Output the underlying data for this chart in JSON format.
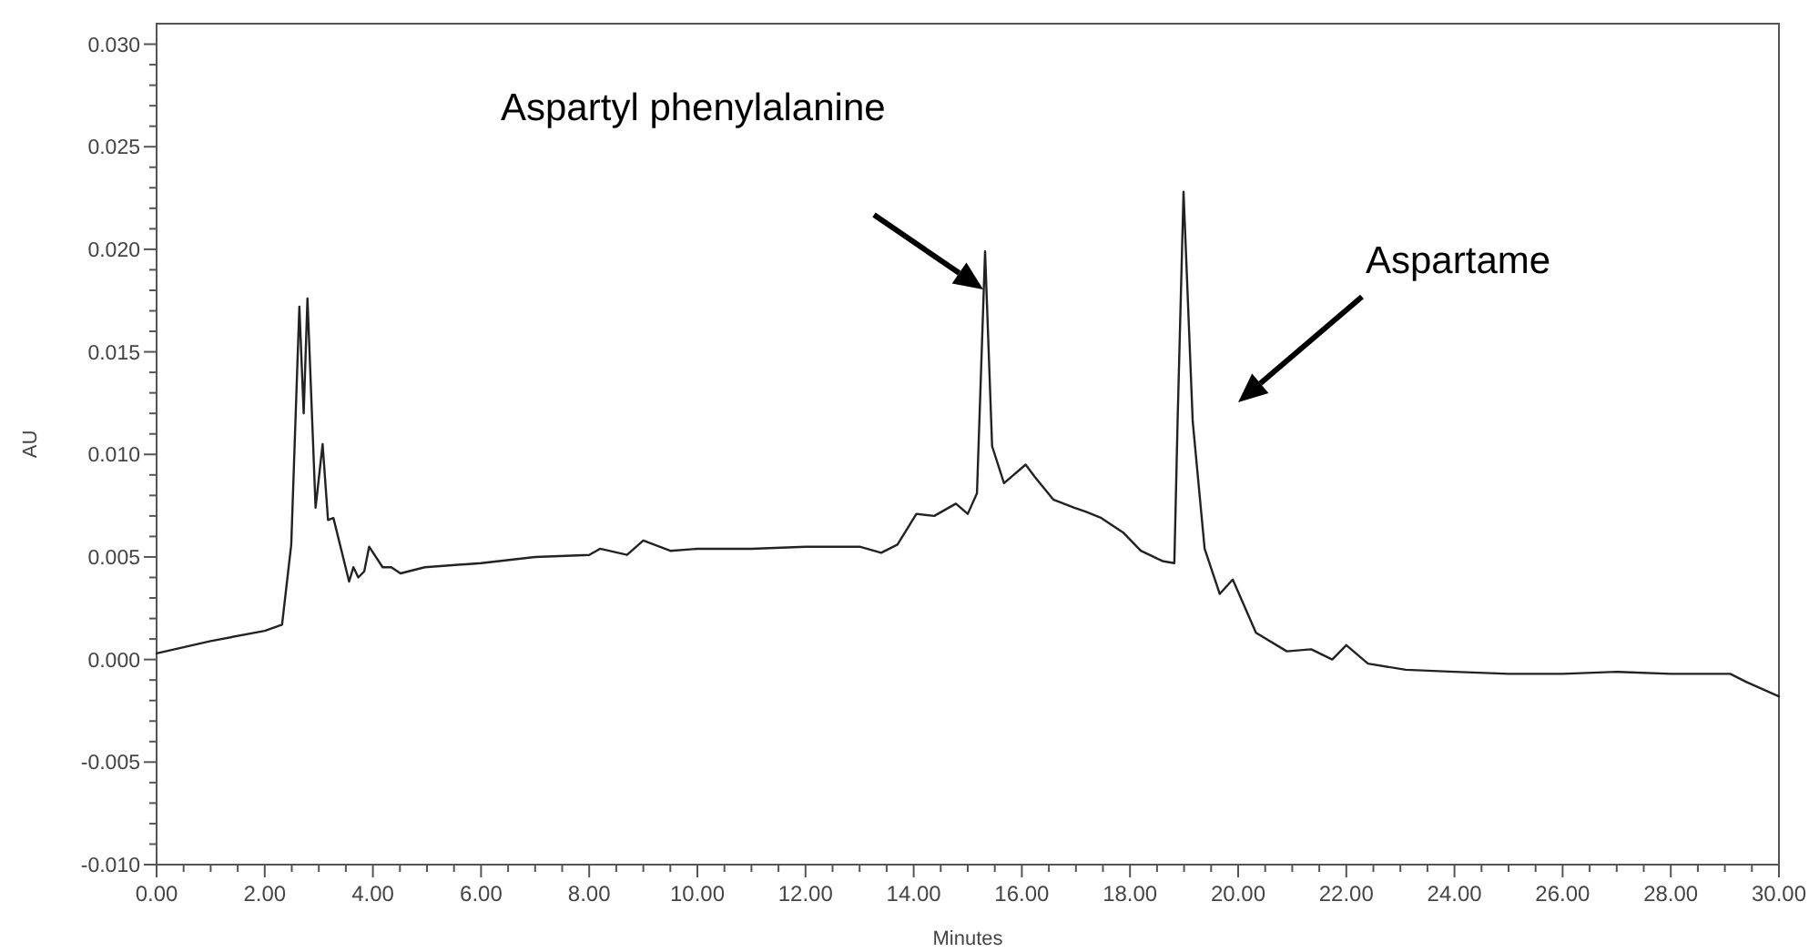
{
  "chart_data": {
    "type": "line",
    "xlabel": "Minutes",
    "ylabel": "AU",
    "grid": false,
    "marker": "none",
    "line_style": "solid",
    "xlim": [
      0,
      30
    ],
    "ylim": [
      -0.01,
      0.031
    ],
    "xticks": [
      {
        "value": 0,
        "label": "0.00"
      },
      {
        "value": 0.5,
        "label": null
      },
      {
        "value": 1,
        "label": null
      },
      {
        "value": 1.5,
        "label": null
      },
      {
        "value": 2,
        "label": "2.00"
      },
      {
        "value": 2.5,
        "label": null
      },
      {
        "value": 3,
        "label": null
      },
      {
        "value": 3.5,
        "label": null
      },
      {
        "value": 4,
        "label": "4.00"
      },
      {
        "value": 4.5,
        "label": null
      },
      {
        "value": 5,
        "label": null
      },
      {
        "value": 5.5,
        "label": null
      },
      {
        "value": 6,
        "label": "6.00"
      },
      {
        "value": 6.5,
        "label": null
      },
      {
        "value": 7,
        "label": null
      },
      {
        "value": 7.5,
        "label": null
      },
      {
        "value": 8,
        "label": "8.00"
      },
      {
        "value": 8.5,
        "label": null
      },
      {
        "value": 9,
        "label": null
      },
      {
        "value": 9.5,
        "label": null
      },
      {
        "value": 10,
        "label": "10.00"
      },
      {
        "value": 10.5,
        "label": null
      },
      {
        "value": 11,
        "label": null
      },
      {
        "value": 11.5,
        "label": null
      },
      {
        "value": 12,
        "label": "12.00"
      },
      {
        "value": 12.5,
        "label": null
      },
      {
        "value": 13,
        "label": null
      },
      {
        "value": 13.5,
        "label": null
      },
      {
        "value": 14,
        "label": "14.00"
      },
      {
        "value": 14.5,
        "label": null
      },
      {
        "value": 15,
        "label": null
      },
      {
        "value": 15.5,
        "label": null
      },
      {
        "value": 16,
        "label": "16.00"
      },
      {
        "value": 16.5,
        "label": null
      },
      {
        "value": 17,
        "label": null
      },
      {
        "value": 17.5,
        "label": null
      },
      {
        "value": 18,
        "label": "18.00"
      },
      {
        "value": 18.5,
        "label": null
      },
      {
        "value": 19,
        "label": null
      },
      {
        "value": 19.5,
        "label": null
      },
      {
        "value": 20,
        "label": "20.00"
      },
      {
        "value": 20.5,
        "label": null
      },
      {
        "value": 21,
        "label": null
      },
      {
        "value": 21.5,
        "label": null
      },
      {
        "value": 22,
        "label": "22.00"
      },
      {
        "value": 22.5,
        "label": null
      },
      {
        "value": 23,
        "label": null
      },
      {
        "value": 23.5,
        "label": null
      },
      {
        "value": 24,
        "label": "24.00"
      },
      {
        "value": 24.5,
        "label": null
      },
      {
        "value": 25,
        "label": null
      },
      {
        "value": 25.5,
        "label": null
      },
      {
        "value": 26,
        "label": "26.00"
      },
      {
        "value": 26.5,
        "label": null
      },
      {
        "value": 27,
        "label": null
      },
      {
        "value": 27.5,
        "label": null
      },
      {
        "value": 28,
        "label": "28.00"
      },
      {
        "value": 28.5,
        "label": null
      },
      {
        "value": 29,
        "label": null
      },
      {
        "value": 29.5,
        "label": null
      },
      {
        "value": 30,
        "label": "30.00"
      }
    ],
    "yticks": [
      {
        "value": -0.01,
        "label": "-0.010"
      },
      {
        "value": -0.009,
        "label": null
      },
      {
        "value": -0.008,
        "label": null
      },
      {
        "value": -0.007,
        "label": null
      },
      {
        "value": -0.006,
        "label": null
      },
      {
        "value": -0.005,
        "label": "-0.005"
      },
      {
        "value": -0.004,
        "label": null
      },
      {
        "value": -0.003,
        "label": null
      },
      {
        "value": -0.002,
        "label": null
      },
      {
        "value": -0.001,
        "label": null
      },
      {
        "value": 0,
        "label": "0.000"
      },
      {
        "value": 0.001,
        "label": null
      },
      {
        "value": 0.002,
        "label": null
      },
      {
        "value": 0.003,
        "label": null
      },
      {
        "value": 0.004,
        "label": null
      },
      {
        "value": 0.005,
        "label": "0.005"
      },
      {
        "value": 0.006,
        "label": null
      },
      {
        "value": 0.007,
        "label": null
      },
      {
        "value": 0.008,
        "label": null
      },
      {
        "value": 0.009,
        "label": null
      },
      {
        "value": 0.01,
        "label": "0.010"
      },
      {
        "value": 0.011,
        "label": null
      },
      {
        "value": 0.012,
        "label": null
      },
      {
        "value": 0.013,
        "label": null
      },
      {
        "value": 0.014,
        "label": null
      },
      {
        "value": 0.015,
        "label": "0.015"
      },
      {
        "value": 0.016,
        "label": null
      },
      {
        "value": 0.017,
        "label": null
      },
      {
        "value": 0.018,
        "label": null
      },
      {
        "value": 0.019,
        "label": null
      },
      {
        "value": 0.02,
        "label": "0.020"
      },
      {
        "value": 0.021,
        "label": null
      },
      {
        "value": 0.022,
        "label": null
      },
      {
        "value": 0.023,
        "label": null
      },
      {
        "value": 0.024,
        "label": null
      },
      {
        "value": 0.025,
        "label": "0.025"
      },
      {
        "value": 0.026,
        "label": null
      },
      {
        "value": 0.027,
        "label": null
      },
      {
        "value": 0.028,
        "label": null
      },
      {
        "value": 0.029,
        "label": null
      },
      {
        "value": 0.03,
        "label": "0.030"
      }
    ],
    "annotations": [
      "Aspartyl phenylalanine",
      "Aspartame"
    ],
    "series": [
      {
        "color": "#222222",
        "x": [
          0,
          1,
          2,
          2.32,
          2.49,
          2.64,
          2.72,
          2.79,
          2.94,
          3.07,
          3.17,
          3.27,
          3.56,
          3.64,
          3.73,
          3.84,
          3.93,
          4.18,
          4.34,
          4.51,
          4.96,
          6,
          7,
          8,
          8.2,
          8.7,
          9,
          9.5,
          10,
          11,
          12,
          13,
          13.4,
          13.7,
          14.05,
          14.38,
          14.78,
          15,
          15.17,
          15.32,
          15.45,
          15.67,
          16.07,
          16.24,
          16.58,
          16.97,
          17.19,
          17.47,
          17.87,
          18.2,
          18.6,
          18.82,
          18.88,
          18.99,
          19.16,
          19.38,
          19.66,
          19.9,
          20.33,
          20.9,
          21.35,
          21.74,
          22,
          22.4,
          23.1,
          24,
          25,
          26,
          27,
          28,
          29.1,
          29.4,
          30
        ],
        "values": [
          0.0003,
          0.0009,
          0.0014,
          0.0017,
          0.0056,
          0.0172,
          0.012,
          0.0176,
          0.0074,
          0.0105,
          0.0068,
          0.0069,
          0.0038,
          0.0045,
          0.004,
          0.0043,
          0.0055,
          0.0045,
          0.0045,
          0.0042,
          0.0045,
          0.0047,
          0.005,
          0.0051,
          0.0054,
          0.0051,
          0.0058,
          0.0053,
          0.0054,
          0.0054,
          0.0055,
          0.0055,
          0.0052,
          0.0056,
          0.0071,
          0.007,
          0.0076,
          0.0071,
          0.0081,
          0.0199,
          0.0104,
          0.0086,
          0.0095,
          0.0089,
          0.0078,
          0.0074,
          0.0072,
          0.0069,
          0.0062,
          0.0053,
          0.0048,
          0.0047,
          0.0116,
          0.0228,
          0.0116,
          0.0054,
          0.0032,
          0.0039,
          0.0013,
          0.0004,
          0.0005,
          0,
          0.0007,
          -0.0002,
          -0.0005,
          -0.0006,
          -0.0007,
          -0.0007,
          -0.0006,
          -0.0007,
          -0.0007,
          -0.0011,
          -0.0018
        ]
      }
    ]
  }
}
